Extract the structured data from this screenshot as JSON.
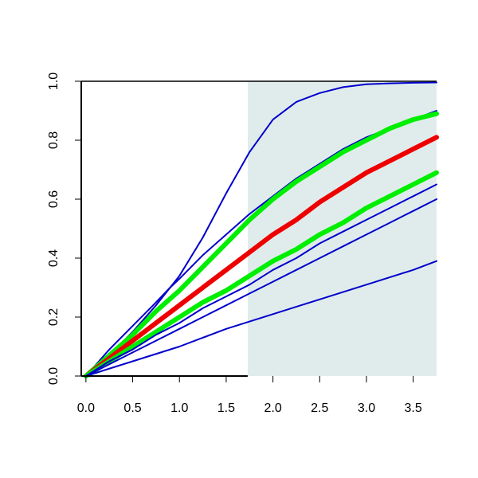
{
  "chart_data": {
    "type": "line",
    "title": "",
    "xlabel": "",
    "ylabel": "",
    "xlim": [
      -0.05,
      3.75
    ],
    "ylim": [
      0,
      1
    ],
    "x_ticks": [
      "0.0",
      "0.5",
      "1.0",
      "1.5",
      "2.0",
      "2.5",
      "3.0",
      "3.5"
    ],
    "y_ticks": [
      "0.0",
      "0.2",
      "0.4",
      "0.6",
      "0.8",
      "1.0"
    ],
    "grid": false,
    "legend": "none",
    "shaded_region": {
      "x_start": 1.73,
      "x_end": 3.75,
      "color": "#e0ecec"
    },
    "series": [
      {
        "color": "#0000cc",
        "width": "thin",
        "points": [
          [
            0,
            0
          ],
          [
            0.25,
            0.07
          ],
          [
            0.5,
            0.15
          ],
          [
            0.75,
            0.24
          ],
          [
            1.0,
            0.34
          ],
          [
            1.25,
            0.47
          ],
          [
            1.5,
            0.62
          ],
          [
            1.75,
            0.76
          ],
          [
            2.0,
            0.87
          ],
          [
            2.25,
            0.93
          ],
          [
            2.5,
            0.96
          ],
          [
            2.75,
            0.98
          ],
          [
            3.0,
            0.99
          ],
          [
            3.25,
            0.993
          ],
          [
            3.5,
            0.995
          ],
          [
            3.75,
            0.996
          ]
        ]
      },
      {
        "color": "#0000cc",
        "width": "thin",
        "points": [
          [
            0,
            0
          ],
          [
            0.25,
            0.09
          ],
          [
            0.5,
            0.17
          ],
          [
            0.75,
            0.25
          ],
          [
            0.9,
            0.3
          ],
          [
            1.0,
            0.33
          ],
          [
            1.25,
            0.41
          ],
          [
            1.5,
            0.48
          ],
          [
            1.75,
            0.55
          ],
          [
            2.0,
            0.61
          ],
          [
            2.25,
            0.67
          ],
          [
            2.5,
            0.72
          ],
          [
            2.75,
            0.77
          ],
          [
            3.0,
            0.81
          ],
          [
            3.25,
            0.84
          ],
          [
            3.5,
            0.87
          ],
          [
            3.75,
            0.9
          ]
        ]
      },
      {
        "color": "#00ee00",
        "width": "thick",
        "points": [
          [
            0,
            0
          ],
          [
            0.25,
            0.07
          ],
          [
            0.5,
            0.14
          ],
          [
            0.75,
            0.22
          ],
          [
            1.0,
            0.29
          ],
          [
            1.25,
            0.37
          ],
          [
            1.5,
            0.45
          ],
          [
            1.75,
            0.53
          ],
          [
            2.0,
            0.6
          ],
          [
            2.25,
            0.66
          ],
          [
            2.5,
            0.71
          ],
          [
            2.75,
            0.76
          ],
          [
            3.0,
            0.8
          ],
          [
            3.25,
            0.84
          ],
          [
            3.5,
            0.87
          ],
          [
            3.75,
            0.89
          ]
        ]
      },
      {
        "color": "#ee0000",
        "width": "thick",
        "points": [
          [
            0,
            0
          ],
          [
            0.25,
            0.06
          ],
          [
            0.5,
            0.12
          ],
          [
            0.75,
            0.18
          ],
          [
            1.0,
            0.24
          ],
          [
            1.25,
            0.3
          ],
          [
            1.5,
            0.36
          ],
          [
            1.75,
            0.42
          ],
          [
            2.0,
            0.48
          ],
          [
            2.25,
            0.53
          ],
          [
            2.5,
            0.59
          ],
          [
            2.75,
            0.64
          ],
          [
            3.0,
            0.69
          ],
          [
            3.25,
            0.73
          ],
          [
            3.5,
            0.77
          ],
          [
            3.75,
            0.81
          ]
        ]
      },
      {
        "color": "#00ee00",
        "width": "thick",
        "points": [
          [
            0,
            0
          ],
          [
            0.25,
            0.05
          ],
          [
            0.5,
            0.1
          ],
          [
            0.75,
            0.15
          ],
          [
            1.0,
            0.2
          ],
          [
            1.25,
            0.25
          ],
          [
            1.5,
            0.29
          ],
          [
            1.75,
            0.34
          ],
          [
            2.0,
            0.39
          ],
          [
            2.25,
            0.43
          ],
          [
            2.5,
            0.48
          ],
          [
            2.75,
            0.52
          ],
          [
            3.0,
            0.57
          ],
          [
            3.25,
            0.61
          ],
          [
            3.5,
            0.65
          ],
          [
            3.75,
            0.69
          ]
        ]
      },
      {
        "color": "#0000cc",
        "width": "thin",
        "points": [
          [
            0,
            0
          ],
          [
            0.25,
            0.05
          ],
          [
            0.5,
            0.09
          ],
          [
            0.75,
            0.14
          ],
          [
            1.0,
            0.18
          ],
          [
            1.25,
            0.23
          ],
          [
            1.5,
            0.27
          ],
          [
            1.75,
            0.31
          ],
          [
            2.0,
            0.36
          ],
          [
            2.25,
            0.4
          ],
          [
            2.5,
            0.45
          ],
          [
            2.75,
            0.49
          ],
          [
            3.0,
            0.53
          ],
          [
            3.25,
            0.57
          ],
          [
            3.5,
            0.61
          ],
          [
            3.75,
            0.65
          ]
        ]
      },
      {
        "color": "#0000cc",
        "width": "thin",
        "points": [
          [
            0,
            0
          ],
          [
            0.25,
            0.04
          ],
          [
            0.5,
            0.08
          ],
          [
            0.75,
            0.12
          ],
          [
            1.0,
            0.16
          ],
          [
            1.25,
            0.2
          ],
          [
            1.5,
            0.24
          ],
          [
            1.75,
            0.28
          ],
          [
            2.0,
            0.32
          ],
          [
            2.25,
            0.36
          ],
          [
            2.5,
            0.4
          ],
          [
            2.75,
            0.44
          ],
          [
            3.0,
            0.48
          ],
          [
            3.25,
            0.52
          ],
          [
            3.5,
            0.56
          ],
          [
            3.75,
            0.6
          ]
        ]
      },
      {
        "color": "#0000cc",
        "width": "thin",
        "points": [
          [
            0,
            0
          ],
          [
            0.5,
            0.05
          ],
          [
            1.0,
            0.1
          ],
          [
            1.5,
            0.16
          ],
          [
            2.0,
            0.21
          ],
          [
            2.5,
            0.26
          ],
          [
            3.0,
            0.31
          ],
          [
            3.5,
            0.36
          ],
          [
            3.75,
            0.39
          ]
        ]
      }
    ]
  }
}
